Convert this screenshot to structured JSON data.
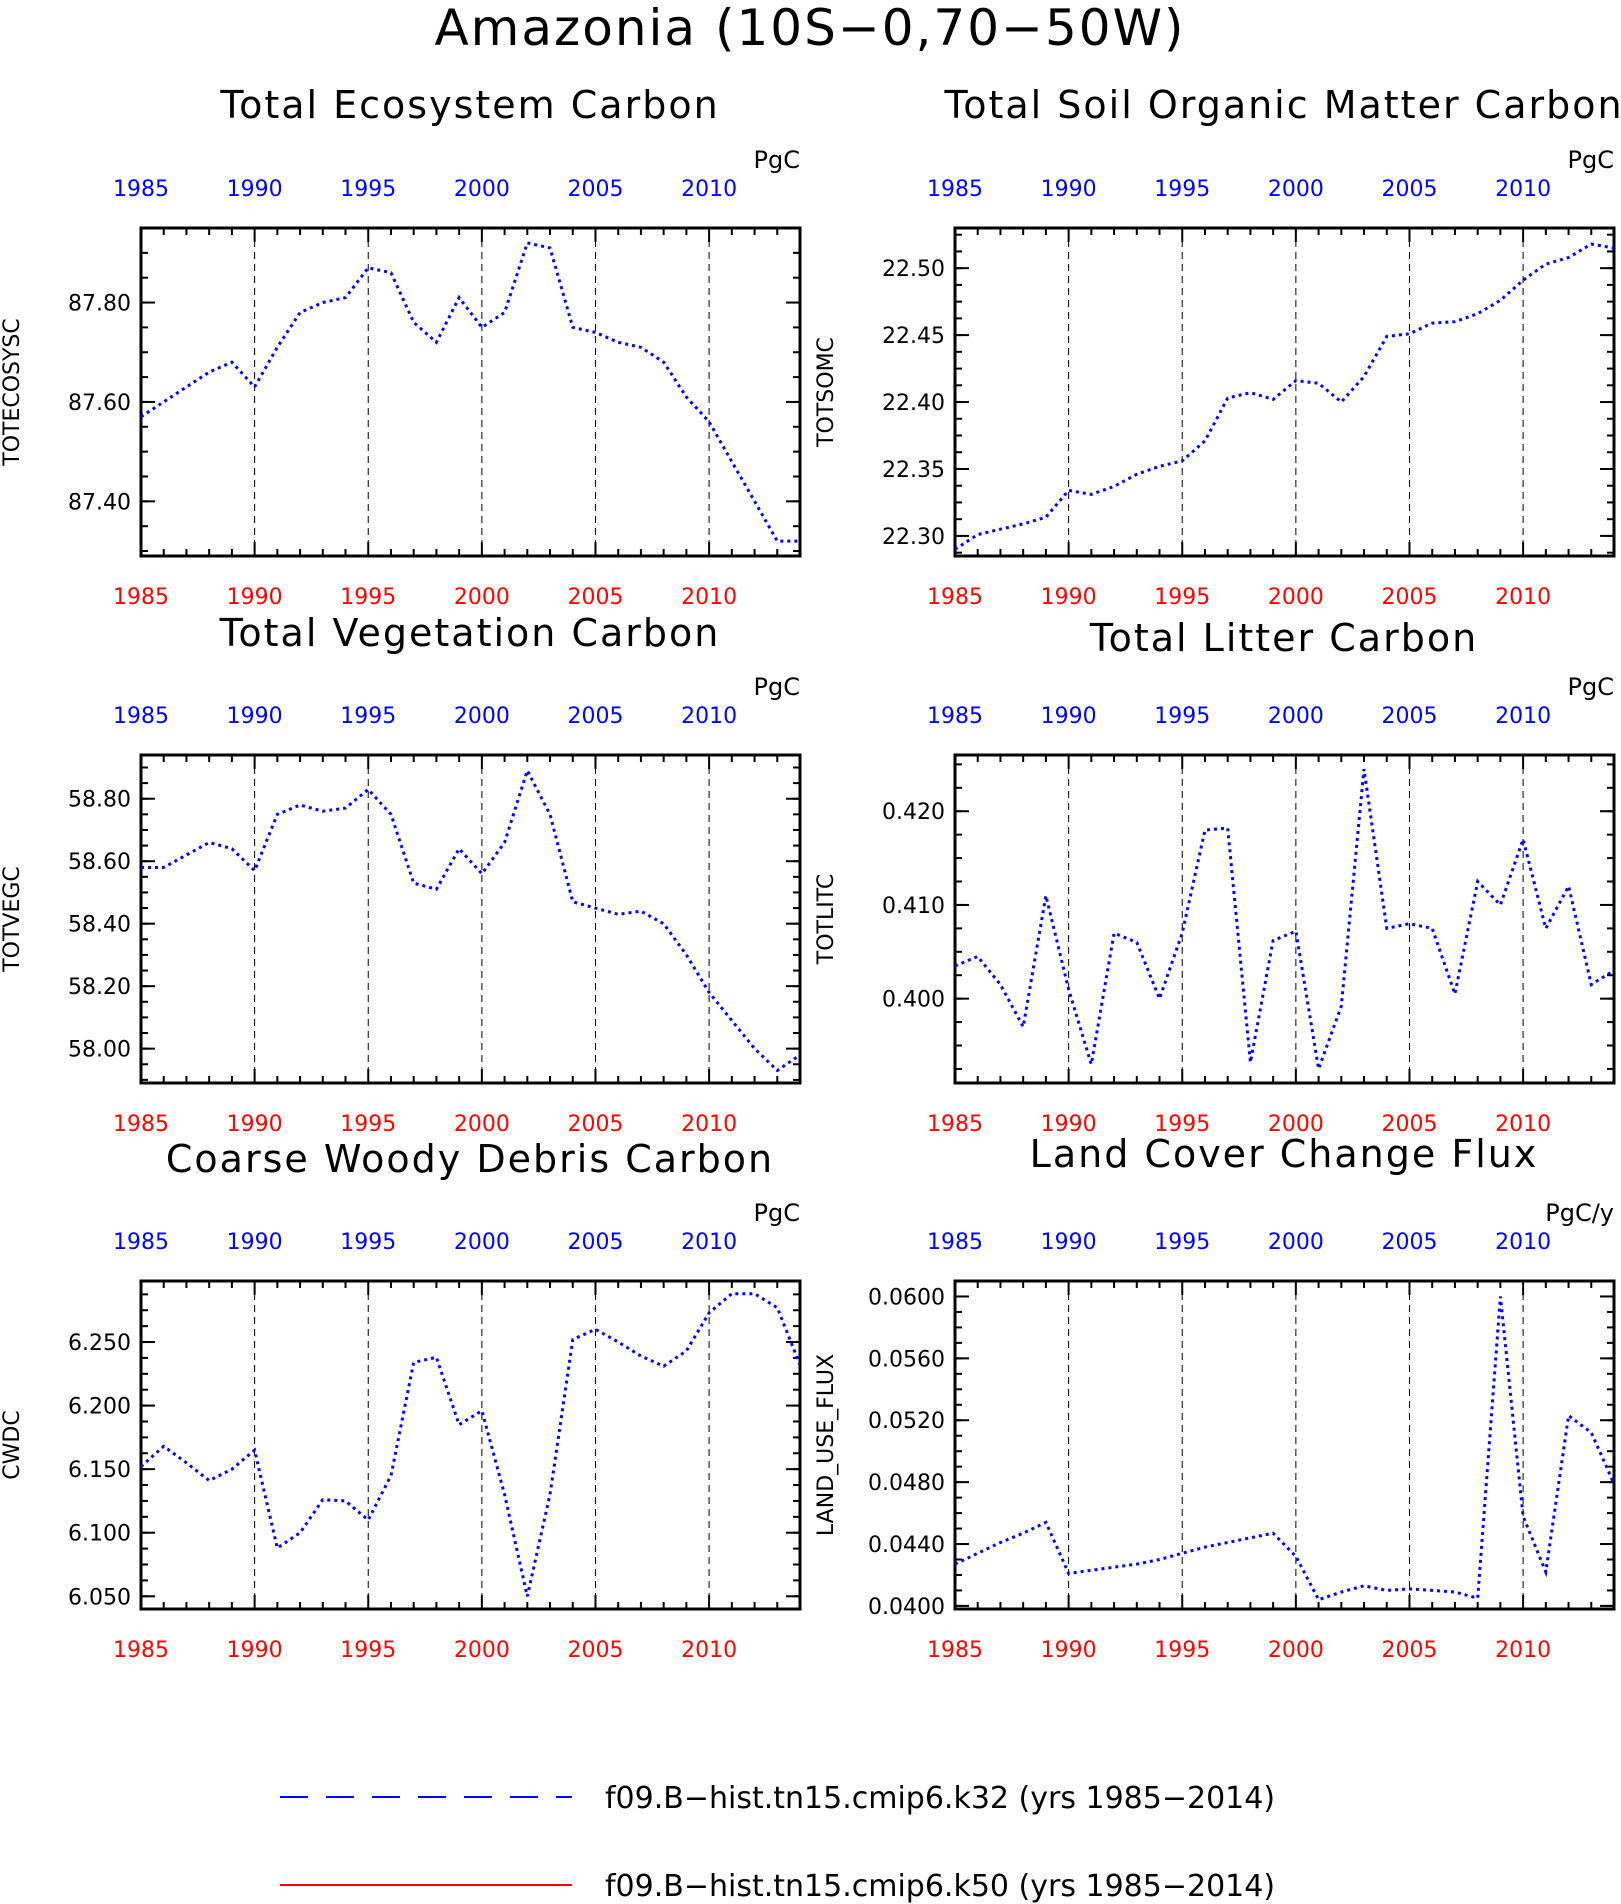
{
  "title": "Amazonia (10S−0,70−50W)",
  "colors": {
    "series1": "#0000ff",
    "series2": "#ff0000",
    "top_ticks": "#0000ff",
    "bottom_ticks": "#ff0000"
  },
  "legend": [
    {
      "label": "f09.B−hist.tn15.cmip6.k32 (yrs 1985−2014)",
      "color": "#0000ff",
      "style": "dashed"
    },
    {
      "label": "f09.B−hist.tn15.cmip6.k50 (yrs 1985−2014)",
      "color": "#ff0000",
      "style": "solid"
    }
  ],
  "chart_data": [
    {
      "type": "line",
      "title": "Total Ecosystem Carbon",
      "ylabel": "TOTECOSYSC",
      "units": "PgC",
      "xlim": [
        1985,
        2014
      ],
      "ylim": [
        87.29,
        87.95
      ],
      "xticks": [
        "1985",
        "1990",
        "1995",
        "2000",
        "2005",
        "2010"
      ],
      "yticks": [
        "87.40",
        "87.60",
        "87.80"
      ],
      "grid": "vertical dashed at 1990, 1995, 2000, 2005, 2010",
      "x": [
        1985,
        1986,
        1987,
        1988,
        1989,
        1990,
        1991,
        1992,
        1993,
        1994,
        1995,
        1996,
        1997,
        1998,
        1999,
        2000,
        2001,
        2002,
        2003,
        2004,
        2005,
        2006,
        2007,
        2008,
        2009,
        2010,
        2011,
        2012,
        2013,
        2014
      ],
      "series": [
        {
          "name": "f09.B−hist.tn15.cmip6.k32",
          "values": [
            87.57,
            87.6,
            87.63,
            87.66,
            87.68,
            87.63,
            87.71,
            87.78,
            87.8,
            87.81,
            87.87,
            87.86,
            87.76,
            87.72,
            87.81,
            87.75,
            87.78,
            87.92,
            87.91,
            87.75,
            87.74,
            87.72,
            87.71,
            87.68,
            87.61,
            87.56,
            87.48,
            87.4,
            87.32,
            87.32
          ]
        }
      ]
    },
    {
      "type": "line",
      "title": "Total Soil Organic Matter Carbon",
      "ylabel": "TOTSOMC",
      "units": "PgC",
      "xlim": [
        1985,
        2014
      ],
      "ylim": [
        22.285,
        22.53
      ],
      "xticks": [
        "1985",
        "1990",
        "1995",
        "2000",
        "2005",
        "2010"
      ],
      "yticks": [
        "22.30",
        "22.35",
        "22.40",
        "22.45",
        "22.50"
      ],
      "grid": "vertical dashed at 1990, 1995, 2000, 2005, 2010",
      "x": [
        1985,
        1986,
        1987,
        1988,
        1989,
        1990,
        1991,
        1992,
        1993,
        1994,
        1995,
        1996,
        1997,
        1998,
        1999,
        2000,
        2001,
        2002,
        2003,
        2004,
        2005,
        2006,
        2007,
        2008,
        2009,
        2010,
        2011,
        2012,
        2013,
        2014
      ],
      "series": [
        {
          "name": "f09.B−hist.tn15.cmip6.k32",
          "values": [
            22.29,
            22.301,
            22.305,
            22.309,
            22.314,
            22.334,
            22.331,
            22.337,
            22.346,
            22.352,
            22.356,
            22.371,
            22.403,
            22.407,
            22.402,
            22.416,
            22.414,
            22.4,
            22.419,
            22.449,
            22.451,
            22.459,
            22.46,
            22.466,
            22.476,
            22.491,
            22.503,
            22.508,
            22.518,
            22.515
          ]
        }
      ]
    },
    {
      "type": "line",
      "title": "Total Vegetation Carbon",
      "ylabel": "TOTVEGC",
      "units": "PgC",
      "xlim": [
        1985,
        2014
      ],
      "ylim": [
        57.89,
        58.94
      ],
      "xticks": [
        "1985",
        "1990",
        "1995",
        "2000",
        "2005",
        "2010"
      ],
      "yticks": [
        "58.00",
        "58.20",
        "58.40",
        "58.60",
        "58.80"
      ],
      "grid": "vertical dashed at 1990, 1995, 2000, 2005, 2010",
      "x": [
        1985,
        1986,
        1987,
        1988,
        1989,
        1990,
        1991,
        1992,
        1993,
        1994,
        1995,
        1996,
        1997,
        1998,
        1999,
        2000,
        2001,
        2002,
        2003,
        2004,
        2005,
        2006,
        2007,
        2008,
        2009,
        2010,
        2011,
        2012,
        2013,
        2014
      ],
      "series": [
        {
          "name": "f09.B−hist.tn15.cmip6.k32",
          "values": [
            58.58,
            58.58,
            58.62,
            58.66,
            58.64,
            58.57,
            58.75,
            58.78,
            58.76,
            58.77,
            58.83,
            58.75,
            58.53,
            58.51,
            58.64,
            58.56,
            58.66,
            58.89,
            58.75,
            58.47,
            58.45,
            58.43,
            58.44,
            58.4,
            58.3,
            58.18,
            58.09,
            58.0,
            57.93,
            57.98
          ]
        }
      ]
    },
    {
      "type": "line",
      "title": "Total Litter Carbon",
      "ylabel": "TOTLITC",
      "units": "PgC",
      "xlim": [
        1985,
        2014
      ],
      "ylim": [
        0.391,
        0.426
      ],
      "xticks": [
        "1985",
        "1990",
        "1995",
        "2000",
        "2005",
        "2010"
      ],
      "yticks": [
        "0.400",
        "0.410",
        "0.420"
      ],
      "grid": "vertical dashed at 1990, 1995, 2000, 2005, 2010",
      "x": [
        1985,
        1986,
        1987,
        1988,
        1989,
        1990,
        1991,
        1992,
        1993,
        1994,
        1995,
        1996,
        1997,
        1998,
        1999,
        2000,
        2001,
        2002,
        2003,
        2004,
        2005,
        2006,
        2007,
        2008,
        2009,
        2010,
        2011,
        2012,
        2013,
        2014
      ],
      "series": [
        {
          "name": "f09.B−hist.tn15.cmip6.k32",
          "values": [
            0.4035,
            0.4045,
            0.4015,
            0.397,
            0.411,
            0.401,
            0.393,
            0.407,
            0.406,
            0.4,
            0.407,
            0.418,
            0.4182,
            0.3932,
            0.4062,
            0.4072,
            0.3925,
            0.3992,
            0.4245,
            0.4075,
            0.408,
            0.4075,
            0.4005,
            0.4125,
            0.41,
            0.417,
            0.4075,
            0.412,
            0.4015,
            0.403
          ]
        }
      ]
    },
    {
      "type": "line",
      "title": "Coarse Woody Debris Carbon",
      "ylabel": "CWDC",
      "units": "PgC",
      "xlim": [
        1985,
        2014
      ],
      "ylim": [
        6.04,
        6.298
      ],
      "xticks": [
        "1985",
        "1990",
        "1995",
        "2000",
        "2005",
        "2010"
      ],
      "yticks": [
        "6.050",
        "6.100",
        "6.150",
        "6.200",
        "6.250"
      ],
      "grid": "vertical dashed at 1990, 1995, 2000, 2005, 2010",
      "x": [
        1985,
        1986,
        1987,
        1988,
        1989,
        1990,
        1991,
        1992,
        1993,
        1994,
        1995,
        1996,
        1997,
        1998,
        1999,
        2000,
        2001,
        2002,
        2003,
        2004,
        2005,
        2006,
        2007,
        2008,
        2009,
        2010,
        2011,
        2012,
        2013,
        2014
      ],
      "series": [
        {
          "name": "f09.B−hist.tn15.cmip6.k32",
          "values": [
            6.152,
            6.168,
            6.155,
            6.141,
            6.15,
            6.165,
            6.088,
            6.1,
            6.126,
            6.125,
            6.11,
            6.145,
            6.234,
            6.238,
            6.185,
            6.196,
            6.13,
            6.05,
            6.13,
            6.252,
            6.26,
            6.25,
            6.239,
            6.231,
            6.243,
            6.273,
            6.288,
            6.288,
            6.277,
            6.232
          ]
        }
      ]
    },
    {
      "type": "line",
      "title": "Land Cover Change Flux",
      "ylabel": "LAND_USE_FLUX",
      "units": "PgC/y",
      "xlim": [
        1985,
        2014
      ],
      "ylim": [
        0.0398,
        0.061
      ],
      "xticks": [
        "1985",
        "1990",
        "1995",
        "2000",
        "2005",
        "2010"
      ],
      "yticks": [
        "0.0400",
        "0.0440",
        "0.0480",
        "0.0520",
        "0.0560",
        "0.0600"
      ],
      "grid": "vertical dashed at 1990, 1995, 2000, 2005, 2010",
      "x": [
        1985,
        1986,
        1987,
        1988,
        1989,
        1990,
        1991,
        1992,
        1993,
        1994,
        1995,
        1996,
        1997,
        1998,
        1999,
        2000,
        2001,
        2002,
        2003,
        2004,
        2005,
        2006,
        2007,
        2008,
        2009,
        2010,
        2011,
        2012,
        2013,
        2014
      ],
      "series": [
        {
          "name": "f09.B−hist.tn15.cmip6.k32",
          "values": [
            0.0427,
            0.0434,
            0.0441,
            0.0447,
            0.0454,
            0.0421,
            0.0423,
            0.0425,
            0.0427,
            0.043,
            0.0434,
            0.0438,
            0.0441,
            0.0444,
            0.0447,
            0.0432,
            0.0404,
            0.0409,
            0.0413,
            0.041,
            0.0411,
            0.041,
            0.0409,
            0.0405,
            0.06,
            0.0458,
            0.0422,
            0.0523,
            0.0512,
            0.0479
          ]
        }
      ]
    }
  ]
}
